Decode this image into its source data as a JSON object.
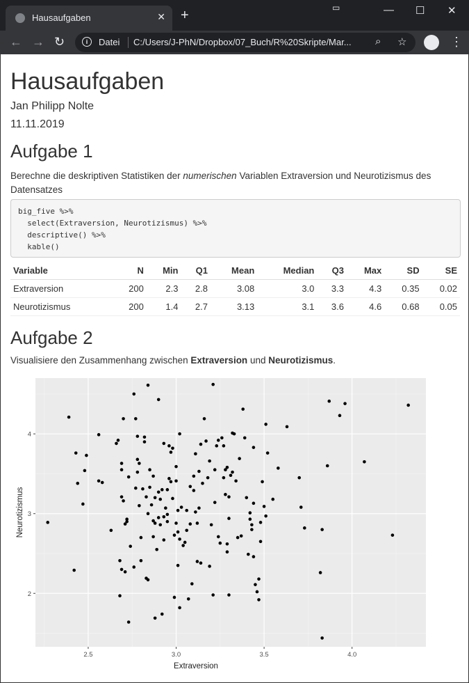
{
  "browser": {
    "tab_title": "Hausaufgaben",
    "address_prefix": "Datei",
    "url": "C:/Users/J-PhN/Dropbox/07_Buch/R%20Skripte/Mar...",
    "new_tab": "+",
    "close": "✕",
    "minimize": "—",
    "maximize": "☐",
    "window_close": "✕"
  },
  "doc": {
    "title": "Hausaufgaben",
    "author": "Jan Philipp Nolte",
    "date": "11.11.2019"
  },
  "task1": {
    "heading": "Aufgabe 1",
    "text_before": "Berechne die deskriptiven Statistiken der ",
    "text_em": "numerischen",
    "text_after": " Variablen Extraversion und Neurotizismus des Datensatzes ",
    "dataset": "big_five",
    "text_end": " .",
    "code_lines": [
      "big_five %>%",
      "  select(Extraversion, Neurotizismus) %>%",
      "  descriptive() %>%",
      "  kable()"
    ],
    "table": {
      "headers": [
        "Variable",
        "N",
        "Min",
        "Q1",
        "Mean",
        "Median",
        "Q3",
        "Max",
        "SD",
        "SE"
      ],
      "rows": [
        [
          "Extraversion",
          "200",
          "2.3",
          "2.8",
          "3.08",
          "3.0",
          "3.3",
          "4.3",
          "0.35",
          "0.02"
        ],
        [
          "Neurotizismus",
          "200",
          "1.4",
          "2.7",
          "3.13",
          "3.1",
          "3.6",
          "4.6",
          "0.68",
          "0.05"
        ]
      ]
    }
  },
  "task2": {
    "heading": "Aufgabe 2",
    "text_before": "Visualisiere den Zusammenhang zwischen ",
    "bold1": "Extraversion",
    "text_mid": " und ",
    "bold2": "Neurotizismus",
    "text_end": "."
  },
  "chart_data": {
    "type": "scatter",
    "xlabel": "Extraversion",
    "ylabel": "Neurotizismus",
    "xlim": [
      2.2,
      4.42
    ],
    "ylim": [
      1.33,
      4.7
    ],
    "xticks": [
      "2.5",
      "3.0",
      "3.5",
      "4.0"
    ],
    "yticks": [
      "2",
      "3",
      "4"
    ],
    "grid": true,
    "background": "#ebebeb",
    "points": [
      [
        2.27,
        2.89
      ],
      [
        2.39,
        4.21
      ],
      [
        2.42,
        2.29
      ],
      [
        2.43,
        3.76
      ],
      [
        2.44,
        3.38
      ],
      [
        2.47,
        3.12
      ],
      [
        2.48,
        3.54
      ],
      [
        2.49,
        3.73
      ],
      [
        2.56,
        3.99
      ],
      [
        2.56,
        3.41
      ],
      [
        2.58,
        3.39
      ],
      [
        2.63,
        2.79
      ],
      [
        2.66,
        3.88
      ],
      [
        2.67,
        3.92
      ],
      [
        2.68,
        1.97
      ],
      [
        2.68,
        2.41
      ],
      [
        2.69,
        2.3
      ],
      [
        2.69,
        3.63
      ],
      [
        2.69,
        3.55
      ],
      [
        2.69,
        3.21
      ],
      [
        2.7,
        3.16
      ],
      [
        2.7,
        4.19
      ],
      [
        2.71,
        2.27
      ],
      [
        2.71,
        2.87
      ],
      [
        2.72,
        2.93
      ],
      [
        2.72,
        2.9
      ],
      [
        2.73,
        3.46
      ],
      [
        2.73,
        1.64
      ],
      [
        2.74,
        2.59
      ],
      [
        2.76,
        2.33
      ],
      [
        2.76,
        4.5
      ],
      [
        2.77,
        4.19
      ],
      [
        2.77,
        3.32
      ],
      [
        2.78,
        3.68
      ],
      [
        2.78,
        3.52
      ],
      [
        2.78,
        3.97
      ],
      [
        2.79,
        3.63
      ],
      [
        2.79,
        3.1
      ],
      [
        2.8,
        2.7
      ],
      [
        2.8,
        2.41
      ],
      [
        2.81,
        3.31
      ],
      [
        2.82,
        3.9
      ],
      [
        2.82,
        3.96
      ],
      [
        2.83,
        3.21
      ],
      [
        2.83,
        2.19
      ],
      [
        2.84,
        3.0
      ],
      [
        2.84,
        2.17
      ],
      [
        2.84,
        4.61
      ],
      [
        2.85,
        3.55
      ],
      [
        2.85,
        3.33
      ],
      [
        2.86,
        3.11
      ],
      [
        2.87,
        2.91
      ],
      [
        2.87,
        2.71
      ],
      [
        2.87,
        3.47
      ],
      [
        2.88,
        2.88
      ],
      [
        2.88,
        3.2
      ],
      [
        2.88,
        1.69
      ],
      [
        2.89,
        2.55
      ],
      [
        2.9,
        2.95
      ],
      [
        2.9,
        3.27
      ],
      [
        2.9,
        4.43
      ],
      [
        2.91,
        3.18
      ],
      [
        2.91,
        2.86
      ],
      [
        2.92,
        3.3
      ],
      [
        2.92,
        1.74
      ],
      [
        2.93,
        2.96
      ],
      [
        2.93,
        2.67
      ],
      [
        2.93,
        3.88
      ],
      [
        2.94,
        3.07
      ],
      [
        2.95,
        2.99
      ],
      [
        2.95,
        3.3
      ],
      [
        2.95,
        2.9
      ],
      [
        2.96,
        3.44
      ],
      [
        2.96,
        3.85
      ],
      [
        2.97,
        3.77
      ],
      [
        2.97,
        3.4
      ],
      [
        2.98,
        3.82
      ],
      [
        2.98,
        3.19
      ],
      [
        2.99,
        1.95
      ],
      [
        2.99,
        2.73
      ],
      [
        3.0,
        3.59
      ],
      [
        3.0,
        3.41
      ],
      [
        3.0,
        2.88
      ],
      [
        3.01,
        2.77
      ],
      [
        3.01,
        2.35
      ],
      [
        3.01,
        3.04
      ],
      [
        3.02,
        4.0
      ],
      [
        3.02,
        2.68
      ],
      [
        3.02,
        1.82
      ],
      [
        3.03,
        3.08
      ],
      [
        3.04,
        2.6
      ],
      [
        3.05,
        2.64
      ],
      [
        3.06,
        3.04
      ],
      [
        3.06,
        2.79
      ],
      [
        3.07,
        1.93
      ],
      [
        3.08,
        2.87
      ],
      [
        3.08,
        3.34
      ],
      [
        3.09,
        2.12
      ],
      [
        3.1,
        3.29
      ],
      [
        3.1,
        3.47
      ],
      [
        3.11,
        3.75
      ],
      [
        3.11,
        3.02
      ],
      [
        3.12,
        2.88
      ],
      [
        3.12,
        2.4
      ],
      [
        3.13,
        3.53
      ],
      [
        3.13,
        3.07
      ],
      [
        3.14,
        2.38
      ],
      [
        3.14,
        3.87
      ],
      [
        3.15,
        3.38
      ],
      [
        3.16,
        4.19
      ],
      [
        3.17,
        3.91
      ],
      [
        3.18,
        3.45
      ],
      [
        3.19,
        2.34
      ],
      [
        3.19,
        3.66
      ],
      [
        3.2,
        2.86
      ],
      [
        3.21,
        1.98
      ],
      [
        3.21,
        4.62
      ],
      [
        3.22,
        3.55
      ],
      [
        3.22,
        3.14
      ],
      [
        3.23,
        3.85
      ],
      [
        3.24,
        2.71
      ],
      [
        3.24,
        3.92
      ],
      [
        3.25,
        2.63
      ],
      [
        3.26,
        3.95
      ],
      [
        3.27,
        3.85
      ],
      [
        3.27,
        3.45
      ],
      [
        3.28,
        3.55
      ],
      [
        3.28,
        3.24
      ],
      [
        3.29,
        3.58
      ],
      [
        3.29,
        2.62
      ],
      [
        3.29,
        2.52
      ],
      [
        3.3,
        3.21
      ],
      [
        3.3,
        2.94
      ],
      [
        3.3,
        1.98
      ],
      [
        3.31,
        3.48
      ],
      [
        3.32,
        4.01
      ],
      [
        3.32,
        3.52
      ],
      [
        3.33,
        4.0
      ],
      [
        3.34,
        3.41
      ],
      [
        3.35,
        2.7
      ],
      [
        3.36,
        3.69
      ],
      [
        3.37,
        2.72
      ],
      [
        3.38,
        4.31
      ],
      [
        3.39,
        3.95
      ],
      [
        3.4,
        3.2
      ],
      [
        3.41,
        2.49
      ],
      [
        3.42,
        3.01
      ],
      [
        3.42,
        2.93
      ],
      [
        3.43,
        2.86
      ],
      [
        3.43,
        2.8
      ],
      [
        3.44,
        3.83
      ],
      [
        3.44,
        3.13
      ],
      [
        3.44,
        2.46
      ],
      [
        3.45,
        2.11
      ],
      [
        3.46,
        2.02
      ],
      [
        3.47,
        2.18
      ],
      [
        3.47,
        1.92
      ],
      [
        3.48,
        2.65
      ],
      [
        3.48,
        2.89
      ],
      [
        3.49,
        3.4
      ],
      [
        3.5,
        3.09
      ],
      [
        3.51,
        2.97
      ],
      [
        3.51,
        4.12
      ],
      [
        3.52,
        3.76
      ],
      [
        3.55,
        3.18
      ],
      [
        3.58,
        3.57
      ],
      [
        3.63,
        4.09
      ],
      [
        3.7,
        3.45
      ],
      [
        3.71,
        3.08
      ],
      [
        3.73,
        2.82
      ],
      [
        3.82,
        2.26
      ],
      [
        3.83,
        1.44
      ],
      [
        3.83,
        2.8
      ],
      [
        3.86,
        3.6
      ],
      [
        3.87,
        4.41
      ],
      [
        3.93,
        4.23
      ],
      [
        3.96,
        4.38
      ],
      [
        4.07,
        3.65
      ],
      [
        4.23,
        2.73
      ],
      [
        4.32,
        4.36
      ]
    ]
  }
}
